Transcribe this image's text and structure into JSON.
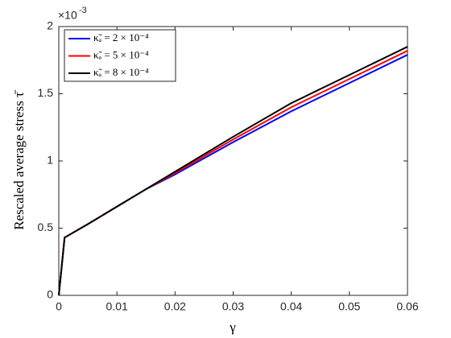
{
  "chart_data": {
    "type": "line",
    "x_label": "γ",
    "y_label": "Rescaled average stress τ̄",
    "y_multiplier": {
      "base": "×10",
      "exponent": "-3"
    },
    "x": [
      0,
      0.001,
      0.005,
      0.01,
      0.015,
      0.02,
      0.03,
      0.04,
      0.05,
      0.06
    ],
    "series": [
      {
        "name": "κ̃ₐ = 2 × 10⁻⁴",
        "color": "#0000ff",
        "values": [
          0,
          0.43,
          0.53,
          0.66,
          0.79,
          0.9,
          1.14,
          1.37,
          1.58,
          1.79
        ]
      },
      {
        "name": "κ̃ₐ = 5 × 10⁻⁴",
        "color": "#ff0000",
        "values": [
          0,
          0.43,
          0.53,
          0.66,
          0.79,
          0.91,
          1.16,
          1.4,
          1.61,
          1.82
        ]
      },
      {
        "name": "κ̃ₐ = 8 × 10⁻⁴",
        "color": "#000000",
        "values": [
          0,
          0.43,
          0.53,
          0.66,
          0.79,
          0.92,
          1.18,
          1.43,
          1.64,
          1.85
        ]
      }
    ],
    "xlim": [
      0,
      0.06
    ],
    "xticks": [
      0,
      0.01,
      0.02,
      0.03,
      0.04,
      0.05,
      0.06
    ],
    "ylim": [
      0,
      2
    ],
    "yticks": [
      0,
      0.5,
      1,
      1.5,
      2
    ],
    "grid": false,
    "legend": "top-left"
  }
}
